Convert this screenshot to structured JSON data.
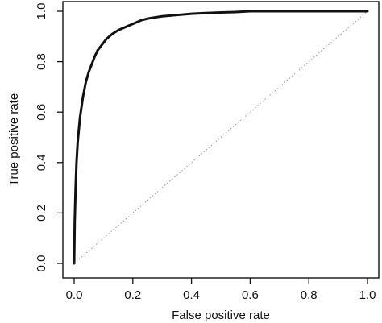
{
  "chart_data": {
    "type": "line",
    "title": "",
    "xlabel": "False positive rate",
    "ylabel": "True positive rate",
    "xlim": [
      0,
      1
    ],
    "ylim": [
      0,
      1
    ],
    "x_ticks": [
      "0.0",
      "0.2",
      "0.4",
      "0.6",
      "0.8",
      "1.0"
    ],
    "y_ticks": [
      "0.0",
      "0.2",
      "0.4",
      "0.6",
      "0.8",
      "1.0"
    ],
    "grid": false,
    "legend": "none",
    "series": [
      {
        "x": [
          0.0,
          0.002,
          0.005,
          0.008,
          0.012,
          0.02,
          0.03,
          0.04,
          0.05,
          0.06,
          0.07,
          0.08,
          0.09,
          0.1,
          0.11,
          0.12,
          0.13,
          0.15,
          0.17,
          0.19,
          0.21,
          0.23,
          0.26,
          0.3,
          0.35,
          0.4,
          0.45,
          0.5,
          0.55,
          0.6,
          0.7,
          0.8,
          0.9,
          1.0
        ],
        "y": [
          0.0,
          0.17,
          0.3,
          0.4,
          0.48,
          0.58,
          0.66,
          0.72,
          0.76,
          0.79,
          0.82,
          0.845,
          0.86,
          0.875,
          0.89,
          0.9,
          0.91,
          0.925,
          0.935,
          0.945,
          0.955,
          0.965,
          0.973,
          0.98,
          0.985,
          0.99,
          0.993,
          0.995,
          0.997,
          1.0,
          1.0,
          1.0,
          1.0,
          1.0
        ],
        "color": "#111111"
      },
      {
        "x": [
          0,
          1
        ],
        "y": [
          0,
          1
        ],
        "color": "#9a9a9a",
        "style": "dotted"
      }
    ]
  }
}
